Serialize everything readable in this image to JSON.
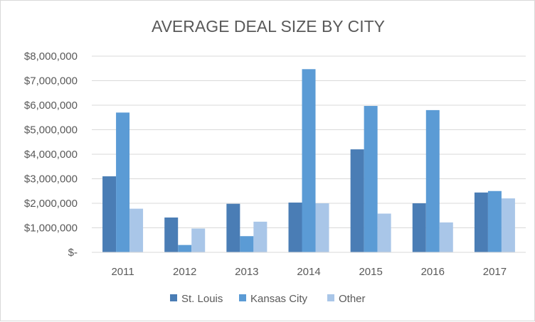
{
  "chart_data": {
    "type": "bar",
    "title": "AVERAGE DEAL SIZE BY CITY",
    "xlabel": "",
    "ylabel": "",
    "categories": [
      "2011",
      "2012",
      "2013",
      "2014",
      "2015",
      "2016",
      "2017"
    ],
    "series": [
      {
        "name": "St. Louis",
        "color": "#4a7db5",
        "values": [
          3100000,
          1420000,
          1980000,
          2030000,
          4200000,
          2000000,
          2440000
        ]
      },
      {
        "name": "Kansas City",
        "color": "#5b9bd5",
        "values": [
          5700000,
          300000,
          660000,
          7470000,
          5970000,
          5800000,
          2500000
        ]
      },
      {
        "name": "Other",
        "color": "#a9c6e8",
        "values": [
          1780000,
          970000,
          1250000,
          2000000,
          1580000,
          1220000,
          2200000
        ]
      }
    ],
    "ylim": [
      0,
      8000000
    ],
    "yticks": [
      0,
      1000000,
      2000000,
      3000000,
      4000000,
      5000000,
      6000000,
      7000000,
      8000000
    ],
    "ytick_labels": [
      "$-",
      "$1,000,000",
      "$2,000,000",
      "$3,000,000",
      "$4,000,000",
      "$5,000,000",
      "$6,000,000",
      "$7,000,000",
      "$8,000,000"
    ],
    "grid": true,
    "legend": "bottom"
  }
}
